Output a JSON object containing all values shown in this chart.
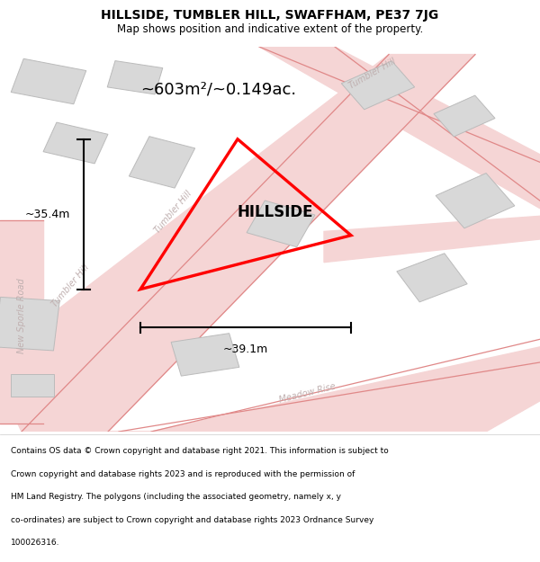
{
  "title": "HILLSIDE, TUMBLER HILL, SWAFFHAM, PE37 7JG",
  "subtitle": "Map shows position and indicative extent of the property.",
  "area_text": "~603m²/~0.149ac.",
  "property_name": "HILLSIDE",
  "dim_vertical": "~35.4m",
  "dim_horizontal": "~39.1m",
  "footer_lines": [
    "Contains OS data © Crown copyright and database right 2021. This information is subject to",
    "Crown copyright and database rights 2023 and is reproduced with the permission of",
    "HM Land Registry. The polygons (including the associated geometry, namely x, y",
    "co-ordinates) are subject to Crown copyright and database rights 2023 Ordnance Survey",
    "100026316."
  ],
  "map_bg": "#f2f2f2",
  "road_color": "#f5d5d5",
  "road_line_color": "#e08888",
  "building_fill": "#d8d8d8",
  "building_edge": "#bbbbbb",
  "property_color": "#ff0000",
  "dim_line_color": "#000000",
  "road_label_color": "#c0b0b0"
}
